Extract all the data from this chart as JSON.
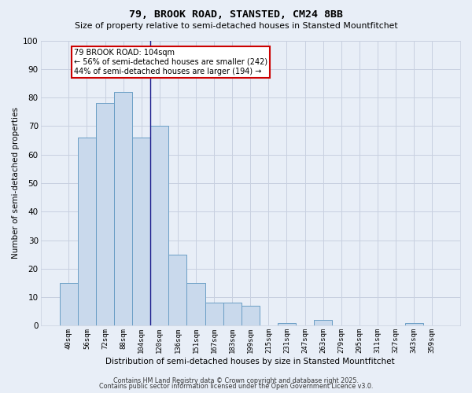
{
  "title": "79, BROOK ROAD, STANSTED, CM24 8BB",
  "subtitle": "Size of property relative to semi-detached houses in Stansted Mountfitchet",
  "xlabel": "Distribution of semi-detached houses by size in Stansted Mountfitchet",
  "ylabel": "Number of semi-detached properties",
  "categories": [
    "40sqm",
    "56sqm",
    "72sqm",
    "88sqm",
    "104sqm",
    "120sqm",
    "136sqm",
    "151sqm",
    "167sqm",
    "183sqm",
    "199sqm",
    "215sqm",
    "231sqm",
    "247sqm",
    "263sqm",
    "279sqm",
    "295sqm",
    "311sqm",
    "327sqm",
    "343sqm",
    "359sqm"
  ],
  "values": [
    15,
    66,
    78,
    82,
    66,
    70,
    25,
    15,
    8,
    8,
    7,
    0,
    1,
    0,
    2,
    0,
    0,
    0,
    0,
    1,
    0
  ],
  "subject_bin_index": 4,
  "subject_label": "79 BROOK ROAD: 104sqm",
  "pct_smaller": 56,
  "n_smaller": 242,
  "pct_larger": 44,
  "n_larger": 194,
  "bar_color": "#c9d9ec",
  "bar_edge_color": "#6a9ec5",
  "subject_line_color": "#1a1a8c",
  "annotation_box_color": "#ffffff",
  "annotation_box_edge": "#cc0000",
  "grid_color": "#c8d0e0",
  "bg_color": "#e8eef7",
  "plot_bg_color": "#e8eef7",
  "footer1": "Contains HM Land Registry data © Crown copyright and database right 2025.",
  "footer2": "Contains public sector information licensed under the Open Government Licence v3.0.",
  "ylim": [
    0,
    100
  ],
  "yticks": [
    0,
    10,
    20,
    30,
    40,
    50,
    60,
    70,
    80,
    90,
    100
  ]
}
